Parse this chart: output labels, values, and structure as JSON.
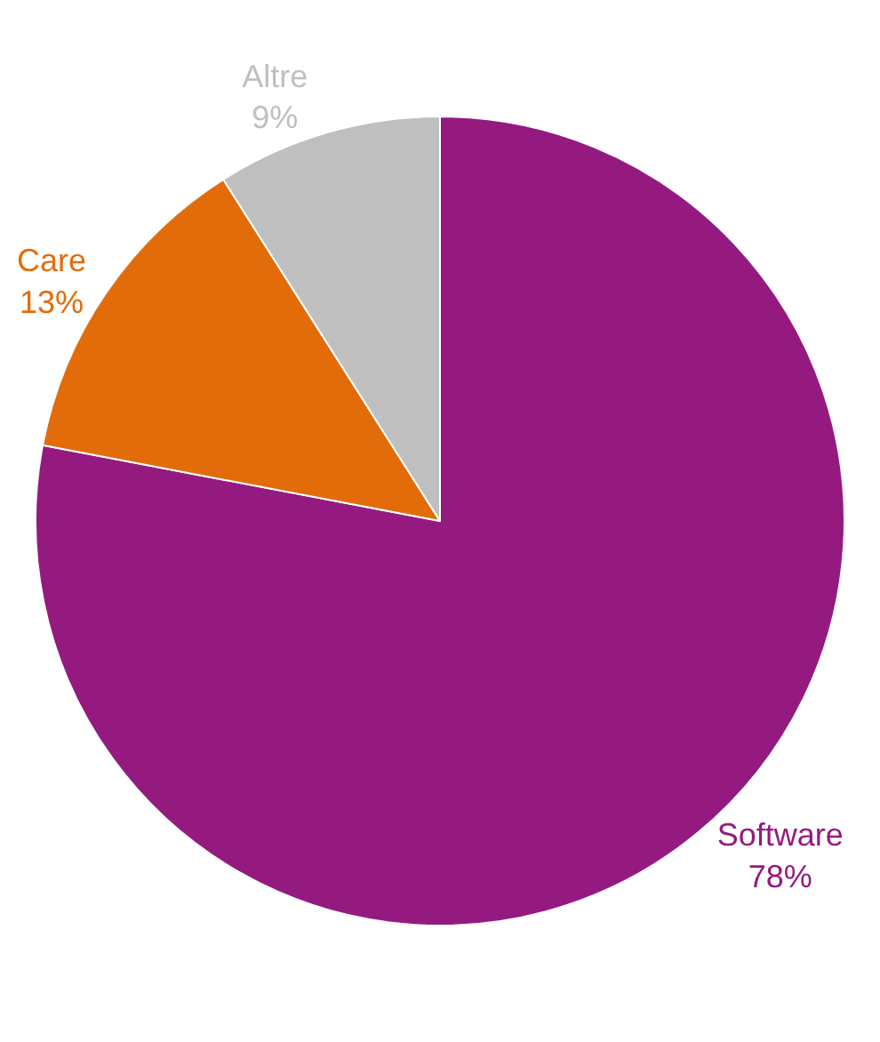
{
  "chart_data": {
    "type": "pie",
    "categories": [
      "Software",
      "Care",
      "Altre"
    ],
    "values": [
      78,
      13,
      9
    ],
    "value_labels": [
      "78%",
      "13%",
      "9%"
    ],
    "colors": [
      "#941a80",
      "#e36c0a",
      "#bfbfbf"
    ],
    "legend": false
  }
}
